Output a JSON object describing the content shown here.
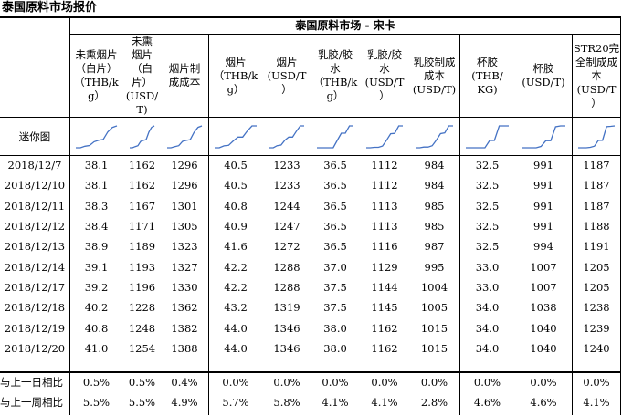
{
  "page_title": "泰国原料市场报价",
  "table": {
    "market_title": "泰国原料市场 - 宋卡",
    "columns": [
      "未熏烟片（白片）(THB/kg)",
      "未熏烟片（白片）(USD/T)",
      "烟片制成成本",
      "烟片(THB/kg)",
      "烟片(USD/T)",
      "乳胶/胶水(THB/kg)",
      "乳胶/胶水(USD/T)",
      "乳胶制成成本(USD/T)",
      "杯胶(THB/KG)",
      "杯胶(USD/T)",
      "STR20完全制成成本(USD/T)"
    ],
    "header_lines": [
      [
        "未熏烟片",
        "（白片）",
        "（THB/k",
        "g）"
      ],
      [
        "未熏",
        "烟片",
        "（白",
        "片）",
        "(USD/",
        "T)"
      ],
      [
        "烟片制",
        "成成本"
      ],
      [
        "烟片",
        "（THB/k",
        "g）"
      ],
      [
        "烟片",
        "(USD/T",
        "）"
      ],
      [
        "乳胶/胶",
        "水",
        "（THB/k",
        "g）"
      ],
      [
        "乳胶/胶",
        "水",
        "(USD/T",
        "）"
      ],
      [
        "乳胶制成",
        "成本",
        "(USD/T)"
      ],
      [
        "杯胶",
        "(THB/",
        "KG)"
      ],
      [
        "杯胶",
        "(USD/T)"
      ],
      [
        "STR20完",
        "全制成成",
        "本",
        "(USD/T",
        "）"
      ]
    ],
    "sparkline_label": "迷你图",
    "rows": [
      {
        "date": "2018/12/7",
        "values": [
          "38.1",
          "1162",
          "1296",
          "40.5",
          "1233",
          "36.5",
          "1112",
          "984",
          "32.5",
          "991",
          "1187"
        ]
      },
      {
        "date": "2018/12/10",
        "values": [
          "38.1",
          "1162",
          "1296",
          "40.5",
          "1233",
          "36.5",
          "1112",
          "984",
          "32.5",
          "991",
          "1187"
        ]
      },
      {
        "date": "2018/12/11",
        "values": [
          "38.3",
          "1167",
          "1301",
          "40.8",
          "1244",
          "36.5",
          "1113",
          "985",
          "32.5",
          "991",
          "1187"
        ]
      },
      {
        "date": "2018/12/12",
        "values": [
          "38.4",
          "1171",
          "1305",
          "40.9",
          "1247",
          "36.5",
          "1113",
          "985",
          "32.5",
          "991",
          "1188"
        ]
      },
      {
        "date": "2018/12/13",
        "values": [
          "38.9",
          "1189",
          "1323",
          "41.6",
          "1272",
          "36.5",
          "1116",
          "987",
          "32.5",
          "994",
          "1191"
        ]
      },
      {
        "date": "2018/12/14",
        "values": [
          "39.1",
          "1193",
          "1327",
          "42.2",
          "1288",
          "37.0",
          "1129",
          "995",
          "33.0",
          "1007",
          "1205"
        ]
      },
      {
        "date": "2018/12/17",
        "values": [
          "39.2",
          "1196",
          "1330",
          "42.2",
          "1288",
          "37.5",
          "1144",
          "1004",
          "33.0",
          "1007",
          "1205"
        ]
      },
      {
        "date": "2018/12/18",
        "values": [
          "40.2",
          "1228",
          "1362",
          "43.2",
          "1319",
          "37.5",
          "1145",
          "1005",
          "34.0",
          "1038",
          "1238"
        ]
      },
      {
        "date": "2018/12/19",
        "values": [
          "40.8",
          "1248",
          "1382",
          "44.0",
          "1346",
          "38.0",
          "1162",
          "1015",
          "34.0",
          "1040",
          "1239"
        ]
      },
      {
        "date": "2018/12/20",
        "values": [
          "41.0",
          "1254",
          "1388",
          "44.0",
          "1346",
          "38.0",
          "1162",
          "1015",
          "34.0",
          "1040",
          "1240"
        ]
      }
    ],
    "summary_rows": [
      {
        "label": "与上一日相比",
        "values": [
          "0.5%",
          "0.5%",
          "0.4%",
          "0.0%",
          "0.0%",
          "0.0%",
          "0.0%",
          "0.0%",
          "0.0%",
          "0.0%",
          "0.0%"
        ]
      },
      {
        "label": "与上一周相比",
        "values": [
          "5.5%",
          "5.5%",
          "4.9%",
          "5.7%",
          "5.8%",
          "4.1%",
          "4.1%",
          "2.8%",
          "4.6%",
          "4.6%",
          "4.1%"
        ]
      }
    ],
    "sparkline_color": "#4472c4"
  }
}
